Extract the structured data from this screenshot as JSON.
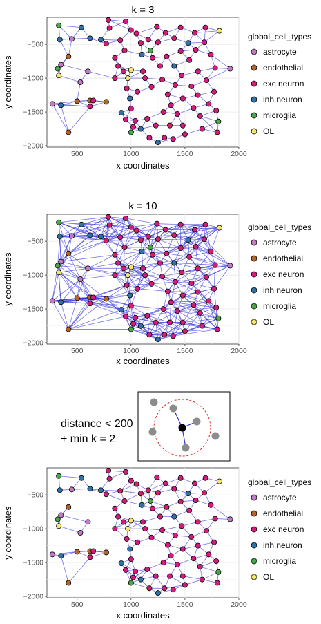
{
  "legend": {
    "title": "global_cell_types",
    "items": [
      {
        "label": "astrocyte",
        "color": "#c27bc4"
      },
      {
        "label": "endothelial",
        "color": "#b5652b"
      },
      {
        "label": "exc neuron",
        "color": "#d81b7a"
      },
      {
        "label": "inh neuron",
        "color": "#2f73a8"
      },
      {
        "label": "microglia",
        "color": "#4aa84a"
      },
      {
        "label": "OL",
        "color": "#f7e66a"
      }
    ]
  },
  "annotation": {
    "line1": "distance < 200",
    "line2": "+ min k = 2"
  },
  "chart_data": [
    {
      "type": "scatter",
      "title": "k = 3",
      "xlabel": "x coordinates",
      "ylabel": "y coordinates",
      "xlim": [
        220,
        2000
      ],
      "ylim": [
        -2020,
        -100
      ],
      "xticks": [
        500,
        1000,
        1500,
        2000
      ],
      "yticks": [
        -500,
        -1000,
        -1500,
        -2000
      ],
      "grid": true,
      "legend_position": "right",
      "edge_color": "#2b2bd9",
      "k": 3
    },
    {
      "type": "scatter",
      "title": "k = 10",
      "xlabel": "x coordinates",
      "ylabel": "y coordinates",
      "xlim": [
        220,
        2000
      ],
      "ylim": [
        -2020,
        -100
      ],
      "xticks": [
        500,
        1000,
        1500,
        2000
      ],
      "yticks": [
        -500,
        -1000,
        -1500,
        -2000
      ],
      "grid": true,
      "legend_position": "right",
      "edge_color": "#2b2bd9",
      "k": 10
    },
    {
      "type": "scatter",
      "title": "",
      "xlabel": "x coordinates",
      "ylabel": "y coordinates",
      "xlim": [
        220,
        2000
      ],
      "ylim": [
        -2020,
        -100
      ],
      "xticks": [
        500,
        1000,
        1500,
        2000
      ],
      "yticks": [
        -500,
        -1000,
        -1500,
        -2000
      ],
      "grid": true,
      "legend_position": "right",
      "edge_color": "#2b2bd9",
      "k": 2,
      "max_distance": 200
    }
  ],
  "cells": [
    {
      "x": 330,
      "y": -220,
      "type": "microglia"
    },
    {
      "x": 340,
      "y": -430,
      "type": "inh neuron"
    },
    {
      "x": 320,
      "y": -860,
      "type": "microglia"
    },
    {
      "x": 330,
      "y": -960,
      "type": "OL"
    },
    {
      "x": 350,
      "y": -800,
      "type": "astrocyte"
    },
    {
      "x": 270,
      "y": -1380,
      "type": "astrocyte"
    },
    {
      "x": 350,
      "y": -1400,
      "type": "inh neuron"
    },
    {
      "x": 420,
      "y": -1800,
      "type": "endothelial"
    },
    {
      "x": 420,
      "y": -680,
      "type": "endothelial"
    },
    {
      "x": 450,
      "y": -420,
      "type": "astrocyte"
    },
    {
      "x": 500,
      "y": -1340,
      "type": "endothelial"
    },
    {
      "x": 530,
      "y": -1060,
      "type": "astrocyte"
    },
    {
      "x": 540,
      "y": -250,
      "type": "inh neuron"
    },
    {
      "x": 620,
      "y": -410,
      "type": "inh neuron"
    },
    {
      "x": 620,
      "y": -1330,
      "type": "endothelial"
    },
    {
      "x": 600,
      "y": -900,
      "type": "astrocyte"
    },
    {
      "x": 650,
      "y": -1330,
      "type": "exc neuron"
    },
    {
      "x": 620,
      "y": -1420,
      "type": "exc neuron"
    },
    {
      "x": 720,
      "y": -430,
      "type": "inh neuron"
    },
    {
      "x": 770,
      "y": -1350,
      "type": "endothelial"
    },
    {
      "x": 790,
      "y": -140,
      "type": "exc neuron"
    },
    {
      "x": 800,
      "y": -260,
      "type": "exc neuron"
    },
    {
      "x": 770,
      "y": -490,
      "type": "exc neuron"
    },
    {
      "x": 850,
      "y": -700,
      "type": "exc neuron"
    },
    {
      "x": 880,
      "y": -820,
      "type": "exc neuron"
    },
    {
      "x": 850,
      "y": -1000,
      "type": "exc neuron"
    },
    {
      "x": 900,
      "y": -440,
      "type": "exc neuron"
    },
    {
      "x": 940,
      "y": -590,
      "type": "exc neuron"
    },
    {
      "x": 950,
      "y": -160,
      "type": "exc neuron"
    },
    {
      "x": 1000,
      "y": -290,
      "type": "exc neuron"
    },
    {
      "x": 930,
      "y": -900,
      "type": "exc neuron"
    },
    {
      "x": 970,
      "y": -1000,
      "type": "OL"
    },
    {
      "x": 1000,
      "y": -880,
      "type": "OL"
    },
    {
      "x": 960,
      "y": -1150,
      "type": "exc neuron"
    },
    {
      "x": 990,
      "y": -1300,
      "type": "inh neuron"
    },
    {
      "x": 910,
      "y": -1510,
      "type": "inh neuron"
    },
    {
      "x": 950,
      "y": -1610,
      "type": "exc neuron"
    },
    {
      "x": 1000,
      "y": -1450,
      "type": "exc neuron"
    },
    {
      "x": 1020,
      "y": -1720,
      "type": "exc neuron"
    },
    {
      "x": 1000,
      "y": -1800,
      "type": "microglia"
    },
    {
      "x": 1040,
      "y": -1630,
      "type": "exc neuron"
    },
    {
      "x": 1060,
      "y": -1200,
      "type": "exc neuron"
    },
    {
      "x": 1050,
      "y": -340,
      "type": "exc neuron"
    },
    {
      "x": 1090,
      "y": -480,
      "type": "exc neuron"
    },
    {
      "x": 1100,
      "y": -650,
      "type": "inh neuron"
    },
    {
      "x": 1110,
      "y": -900,
      "type": "exc neuron"
    },
    {
      "x": 1130,
      "y": -1000,
      "type": "exc neuron"
    },
    {
      "x": 1090,
      "y": -1750,
      "type": "inh neuron"
    },
    {
      "x": 1170,
      "y": -1880,
      "type": "exc neuron"
    },
    {
      "x": 1150,
      "y": -1600,
      "type": "exc neuron"
    },
    {
      "x": 1160,
      "y": -430,
      "type": "exc neuron"
    },
    {
      "x": 1180,
      "y": -590,
      "type": "microglia"
    },
    {
      "x": 1200,
      "y": -700,
      "type": "exc neuron"
    },
    {
      "x": 1190,
      "y": -1130,
      "type": "exc neuron"
    },
    {
      "x": 1230,
      "y": -1700,
      "type": "exc neuron"
    },
    {
      "x": 1250,
      "y": -1950,
      "type": "inh neuron"
    },
    {
      "x": 1240,
      "y": -240,
      "type": "exc neuron"
    },
    {
      "x": 1250,
      "y": -470,
      "type": "exc neuron"
    },
    {
      "x": 1270,
      "y": -820,
      "type": "exc neuron"
    },
    {
      "x": 1290,
      "y": -1020,
      "type": "exc neuron"
    },
    {
      "x": 1300,
      "y": -1500,
      "type": "exc neuron"
    },
    {
      "x": 1310,
      "y": -1880,
      "type": "exc neuron"
    },
    {
      "x": 1320,
      "y": -330,
      "type": "exc neuron"
    },
    {
      "x": 1330,
      "y": -680,
      "type": "exc neuron"
    },
    {
      "x": 1340,
      "y": -1240,
      "type": "exc neuron"
    },
    {
      "x": 1370,
      "y": -1400,
      "type": "exc neuron"
    },
    {
      "x": 1360,
      "y": -1700,
      "type": "exc neuron"
    },
    {
      "x": 1390,
      "y": -1900,
      "type": "exc neuron"
    },
    {
      "x": 1400,
      "y": -410,
      "type": "exc neuron"
    },
    {
      "x": 1400,
      "y": -820,
      "type": "inh neuron"
    },
    {
      "x": 1410,
      "y": -1100,
      "type": "exc neuron"
    },
    {
      "x": 1430,
      "y": -1530,
      "type": "exc neuron"
    },
    {
      "x": 1460,
      "y": -250,
      "type": "exc neuron"
    },
    {
      "x": 1460,
      "y": -600,
      "type": "exc neuron"
    },
    {
      "x": 1470,
      "y": -960,
      "type": "exc neuron"
    },
    {
      "x": 1480,
      "y": -1300,
      "type": "exc neuron"
    },
    {
      "x": 1480,
      "y": -1700,
      "type": "exc neuron"
    },
    {
      "x": 1500,
      "y": -1830,
      "type": "exc neuron"
    },
    {
      "x": 1530,
      "y": -480,
      "type": "inh neuron"
    },
    {
      "x": 1540,
      "y": -730,
      "type": "exc neuron"
    },
    {
      "x": 1560,
      "y": -1120,
      "type": "exc neuron"
    },
    {
      "x": 1580,
      "y": -1440,
      "type": "exc neuron"
    },
    {
      "x": 1590,
      "y": -330,
      "type": "exc neuron"
    },
    {
      "x": 1600,
      "y": -580,
      "type": "exc neuron"
    },
    {
      "x": 1620,
      "y": -900,
      "type": "exc neuron"
    },
    {
      "x": 1620,
      "y": -1250,
      "type": "exc neuron"
    },
    {
      "x": 1640,
      "y": -1560,
      "type": "exc neuron"
    },
    {
      "x": 1660,
      "y": -1750,
      "type": "exc neuron"
    },
    {
      "x": 1680,
      "y": -470,
      "type": "exc neuron"
    },
    {
      "x": 1690,
      "y": -250,
      "type": "exc neuron"
    },
    {
      "x": 1700,
      "y": -1030,
      "type": "exc neuron"
    },
    {
      "x": 1720,
      "y": -1380,
      "type": "exc neuron"
    },
    {
      "x": 1740,
      "y": -650,
      "type": "exc neuron"
    },
    {
      "x": 1770,
      "y": -1200,
      "type": "exc neuron"
    },
    {
      "x": 1790,
      "y": -1480,
      "type": "exc neuron"
    },
    {
      "x": 1800,
      "y": -1800,
      "type": "exc neuron"
    },
    {
      "x": 1810,
      "y": -1640,
      "type": "microglia"
    },
    {
      "x": 1820,
      "y": -300,
      "type": "OL"
    },
    {
      "x": 1780,
      "y": -850,
      "type": "exc neuron"
    },
    {
      "x": 1920,
      "y": -860,
      "type": "astrocyte"
    }
  ]
}
